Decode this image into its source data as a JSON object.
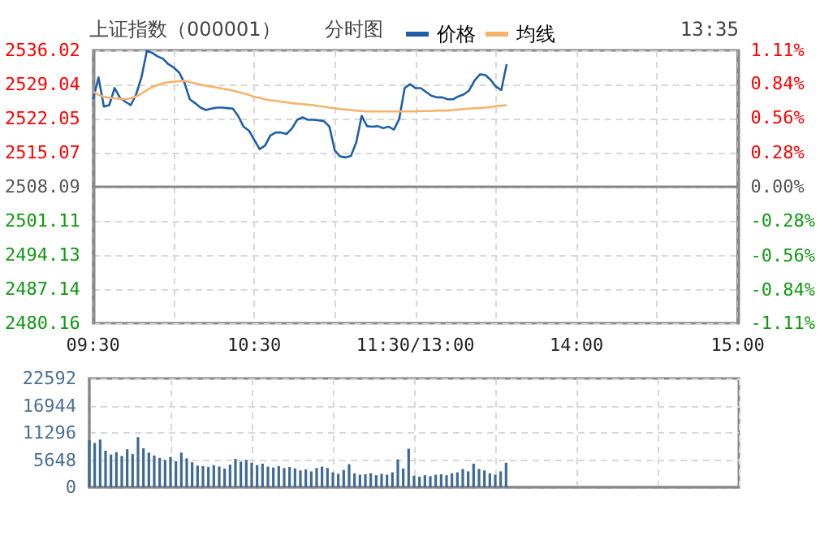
{
  "chart_data": [
    {
      "type": "line",
      "title": "上证指数（000001）",
      "subtitle": "分时图",
      "annotations": [
        "13:35"
      ],
      "legend": "top",
      "grid": true,
      "categories": [
        "09:30",
        null,
        null,
        null,
        null,
        null,
        null,
        null,
        null,
        null,
        null,
        null,
        null,
        null,
        null,
        null,
        null,
        null,
        null,
        null,
        null,
        null,
        null,
        null,
        null,
        null,
        null,
        null,
        null,
        null,
        "10:30",
        null,
        null,
        null,
        null,
        null,
        null,
        null,
        null,
        null,
        null,
        null,
        null,
        null,
        null,
        null,
        null,
        null,
        null,
        null,
        null,
        null,
        null,
        null,
        null,
        null,
        null,
        null,
        null,
        null,
        "11:30/13:00",
        null,
        null,
        null,
        null,
        null,
        null,
        null,
        null,
        null,
        null,
        null,
        null,
        null,
        null,
        null,
        null,
        null,
        null,
        null,
        null,
        null,
        null,
        null,
        null,
        null,
        null,
        null,
        null,
        null,
        "14:00",
        null,
        null,
        null,
        null,
        null,
        null,
        null,
        null,
        null,
        null,
        null,
        null,
        null,
        null,
        null,
        null,
        null,
        null,
        null,
        null,
        null,
        null,
        null,
        null,
        null,
        null,
        null,
        null,
        null,
        "15:00"
      ],
      "ylim": [
        2480.16,
        2536.02
      ],
      "yticks": [
        2480.16,
        2487.14,
        2494.13,
        2501.11,
        2508.09,
        2515.07,
        2522.05,
        2529.04,
        2536.02
      ],
      "y2lim": [
        -1.11,
        1.11
      ],
      "y2ticks": [
        {
          "value": -1.11,
          "label": "-1.11%"
        },
        {
          "value": -0.84,
          "label": "-0.84%"
        },
        {
          "value": -0.56,
          "label": "-0.56%"
        },
        {
          "value": -0.28,
          "label": "-0.28%"
        },
        {
          "value": 0,
          "label": "0.00%"
        },
        {
          "value": 0.28,
          "label": "0.28%"
        },
        {
          "value": 0.56,
          "label": "0.56%"
        },
        {
          "value": 0.84,
          "label": "0.84%"
        },
        {
          "value": 1.11,
          "label": "1.11%"
        }
      ],
      "series": [
        {
          "name": "价格",
          "color": "#1f5fa8",
          "values": [
            2526.0,
            2530.5,
            2524.5,
            2524.8,
            2528.3,
            2526.3,
            2525.5,
            2524.8,
            2527.0,
            2530.5,
            2535.9,
            2535.5,
            2534.8,
            2534.3,
            2533.2,
            2532.5,
            2531.5,
            2529.4,
            2526.0,
            2525.2,
            2524.3,
            2523.8,
            2524.1,
            2524.3,
            2524.3,
            2524.2,
            2524.1,
            2522.6,
            2520.4,
            2519.6,
            2517.7,
            2515.8,
            2516.5,
            2518.6,
            2519.2,
            2519.2,
            2518.9,
            2520.0,
            2521.8,
            2522.3,
            2521.8,
            2521.8,
            2521.7,
            2521.5,
            2520.4,
            2515.5,
            2514.3,
            2514.1,
            2514.4,
            2517.2,
            2522.6,
            2520.5,
            2520.4,
            2520.5,
            2520.1,
            2520.4,
            2519.8,
            2522.0,
            2528.3,
            2529.1,
            2528.3,
            2528.3,
            2527.5,
            2526.7,
            2526.4,
            2526.4,
            2526.0,
            2526.0,
            2526.6,
            2527.0,
            2527.8,
            2529.8,
            2531.1,
            2531.0,
            2530.0,
            2528.6,
            2527.9,
            2533.2,
            null,
            null,
            null,
            null,
            null,
            null,
            null,
            null,
            null,
            null,
            null,
            null,
            null,
            null,
            null,
            null,
            null,
            null,
            null,
            null,
            null,
            null,
            null,
            null,
            null,
            null,
            null,
            null,
            null,
            null,
            null,
            null,
            null,
            null,
            null,
            null,
            null,
            null,
            null,
            null,
            null,
            null,
            null
          ]
        },
        {
          "name": "均线",
          "color": "#f5b26b",
          "values": [
            2527.6,
            2526.9,
            2526.5,
            2526.3,
            2526.2,
            2526.1,
            2526.0,
            2526.2,
            2526.6,
            2527.2,
            2527.9,
            2528.5,
            2528.9,
            2529.3,
            2529.5,
            2529.6,
            2529.7,
            2529.8,
            2529.5,
            2529.3,
            2529.0,
            2528.8,
            2528.6,
            2528.4,
            2528.2,
            2528.0,
            2527.8,
            2527.5,
            2527.2,
            2526.9,
            2526.5,
            2526.3,
            2526.0,
            2525.8,
            2525.7,
            2525.5,
            2525.4,
            2525.2,
            2525.1,
            2525.0,
            2524.9,
            2524.8,
            2524.6,
            2524.5,
            2524.3,
            2524.2,
            2524.0,
            2523.9,
            2523.8,
            2523.7,
            2523.6,
            2523.5,
            2523.5,
            2523.5,
            2523.5,
            2523.5,
            2523.5,
            2523.5,
            2523.5,
            2523.5,
            2523.5,
            2523.6,
            2523.6,
            2523.6,
            2523.7,
            2523.7,
            2523.7,
            2523.8,
            2523.9,
            2524.0,
            2524.1,
            2524.2,
            2524.2,
            2524.3,
            2524.4,
            2524.6,
            2524.7,
            2524.8,
            null,
            null,
            null,
            null,
            null,
            null,
            null,
            null,
            null,
            null,
            null,
            null,
            null,
            null,
            null,
            null,
            null,
            null,
            null,
            null,
            null,
            null,
            null,
            null,
            null,
            null,
            null,
            null,
            null,
            null,
            null,
            null,
            null,
            null,
            null,
            null,
            null,
            null,
            null,
            null,
            null,
            null,
            null
          ]
        }
      ]
    },
    {
      "type": "bar",
      "color": "#3f6a94",
      "grid": true,
      "categories": [
        null,
        null,
        null,
        null,
        null,
        null,
        null,
        null,
        null,
        null,
        null,
        null,
        null,
        null,
        null,
        null,
        null,
        null,
        null,
        null,
        null,
        null,
        null,
        null,
        null,
        null,
        null,
        null,
        null,
        null,
        null,
        null,
        null,
        null,
        null,
        null,
        null,
        null,
        null,
        null,
        null,
        null,
        null,
        null,
        null,
        null,
        null,
        null,
        null,
        null,
        null,
        null,
        null,
        null,
        null,
        null,
        null,
        null,
        null,
        null,
        null,
        null,
        null,
        null,
        null,
        null,
        null,
        null,
        null,
        null,
        null,
        null,
        null,
        null,
        null,
        null,
        null,
        null,
        null,
        null,
        null,
        null,
        null,
        null,
        null,
        null,
        null,
        null,
        null,
        null,
        null,
        null,
        null,
        null,
        null,
        null,
        null,
        null,
        null,
        null,
        null,
        null,
        null,
        null,
        null,
        null,
        null,
        null,
        null,
        null,
        null,
        null,
        null,
        null,
        null,
        null,
        null,
        null,
        null,
        null,
        null
      ],
      "ylim": [
        0,
        22592
      ],
      "yticks": [
        0,
        5648,
        11296,
        16944,
        22592
      ],
      "values": [
        9800,
        9200,
        9900,
        7600,
        6800,
        7300,
        6500,
        7900,
        6900,
        10400,
        8100,
        7200,
        6600,
        6100,
        5700,
        6300,
        5400,
        7200,
        6000,
        5200,
        4500,
        4400,
        4200,
        4600,
        4300,
        3900,
        4700,
        5900,
        5300,
        5700,
        5100,
        4600,
        4900,
        4300,
        4100,
        4400,
        4000,
        4200,
        3900,
        3500,
        3700,
        3300,
        4000,
        4300,
        4000,
        3100,
        2800,
        3600,
        4800,
        2900,
        2600,
        2700,
        2900,
        2500,
        2800,
        2600,
        3100,
        5800,
        3900,
        8000,
        2400,
        2200,
        2500,
        2300,
        2600,
        2700,
        2500,
        2900,
        3100,
        3800,
        3300,
        4900,
        3800,
        3500,
        2900,
        2600,
        3300,
        5100,
        null,
        null,
        null,
        null,
        null,
        null,
        null,
        null,
        null,
        null,
        null,
        null,
        null,
        null,
        null,
        null,
        null,
        null,
        null,
        null,
        null,
        null,
        null,
        null,
        null,
        null,
        null,
        null,
        null,
        null,
        null,
        null,
        null,
        null,
        null,
        null,
        null,
        null,
        null,
        null,
        null,
        null,
        null
      ]
    }
  ]
}
